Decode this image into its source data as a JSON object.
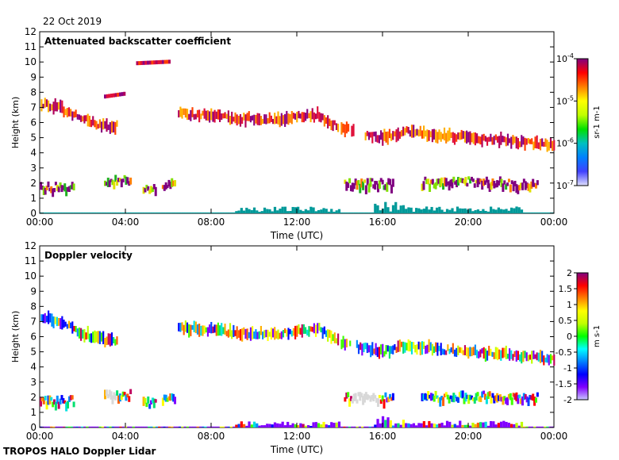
{
  "header": {
    "date": "22 Oct 2019"
  },
  "footer": {
    "instrument": "TROPOS HALO Doppler Lidar"
  },
  "chart_data": [
    {
      "type": "heatmap",
      "title": "Attenuated backscatter coefficient",
      "xlabel": "Time (UTC)",
      "ylabel": "Height (km)",
      "xlim": [
        0,
        24
      ],
      "ylim": [
        0,
        12
      ],
      "xticks": [
        "00:00",
        "04:00",
        "08:00",
        "12:00",
        "16:00",
        "20:00",
        "00:00"
      ],
      "yticks": [
        "0",
        "1",
        "2",
        "3",
        "4",
        "5",
        "6",
        "7",
        "8",
        "9",
        "10",
        "11",
        "12"
      ],
      "colorbar": {
        "label": "sr-1 m-1",
        "scale": "log",
        "range": [
          1e-07,
          0.0001
        ],
        "ticks": [
          "10-7",
          "10-6",
          "10-5",
          "10-4"
        ]
      },
      "features": [
        {
          "name": "cirrus layer",
          "points": [
            [
              0,
              7.3
            ],
            [
              1,
              6.9
            ],
            [
              2,
              6.2
            ],
            [
              3.2,
              5.7
            ],
            [
              6.5,
              6.6
            ],
            [
              9,
              6.3
            ],
            [
              11,
              6.2
            ],
            [
              13,
              6.5
            ],
            [
              14,
              5.6
            ],
            [
              16,
              5.0
            ],
            [
              17,
              5.4
            ],
            [
              19,
              5.1
            ],
            [
              21,
              4.9
            ],
            [
              24,
              4.5
            ]
          ]
        },
        {
          "name": "elevated layer 8 km",
          "points": [
            [
              3.0,
              7.7
            ],
            [
              4.0,
              7.9
            ]
          ]
        },
        {
          "name": "elevated layer 10 km",
          "points": [
            [
              4.5,
              9.9
            ],
            [
              6.0,
              10.0
            ]
          ]
        },
        {
          "name": "low cloud 2 km",
          "segments": [
            [
              0,
              1.6,
              1.6
            ],
            [
              3.0,
              4.2,
              2.0
            ],
            [
              4.8,
              5.4,
              1.5
            ],
            [
              5.7,
              6.3,
              1.8
            ],
            [
              14.2,
              16.5,
              1.8
            ],
            [
              17.8,
              21.5,
              1.9
            ],
            [
              21.5,
              23.2,
              1.8
            ]
          ]
        },
        {
          "name": "boundary layer",
          "value_class": "low",
          "range": [
            0,
            24
          ]
        }
      ]
    },
    {
      "type": "heatmap",
      "title": "Doppler velocity",
      "xlabel": "Time (UTC)",
      "ylabel": "Height (km)",
      "xlim": [
        0,
        24
      ],
      "ylim": [
        0,
        12
      ],
      "xticks": [
        "00:00",
        "04:00",
        "08:00",
        "12:00",
        "16:00",
        "20:00",
        "00:00"
      ],
      "yticks": [
        "0",
        "1",
        "2",
        "3",
        "4",
        "5",
        "6",
        "7",
        "8",
        "9",
        "10",
        "11",
        "12"
      ],
      "colorbar": {
        "label": "m s-1",
        "scale": "linear",
        "range": [
          -2,
          2
        ],
        "ticks": [
          "2",
          "1.5",
          "1",
          "0.5",
          "0",
          "-0.5",
          "-1",
          "-1.5",
          "-2"
        ]
      },
      "features": [
        {
          "name": "cirrus layer",
          "points": [
            [
              0,
              7.3
            ],
            [
              1,
              6.9
            ],
            [
              2,
              6.2
            ],
            [
              3.2,
              5.7
            ],
            [
              6.5,
              6.6
            ],
            [
              9,
              6.3
            ],
            [
              11,
              6.2
            ],
            [
              13,
              6.5
            ],
            [
              14,
              5.6
            ],
            [
              16,
              5.0
            ],
            [
              17,
              5.4
            ],
            [
              19,
              5.1
            ],
            [
              21,
              4.9
            ],
            [
              24,
              4.5
            ]
          ]
        },
        {
          "name": "low cloud 2 km",
          "segments": [
            [
              0,
              1.6,
              1.6
            ],
            [
              3.0,
              4.2,
              2.0
            ],
            [
              4.8,
              5.4,
              1.5
            ],
            [
              5.7,
              6.3,
              1.8
            ],
            [
              14.2,
              16.5,
              1.8
            ],
            [
              17.8,
              21.5,
              1.9
            ],
            [
              21.5,
              23.2,
              1.8
            ]
          ]
        }
      ]
    }
  ]
}
